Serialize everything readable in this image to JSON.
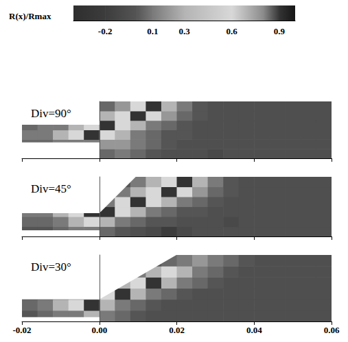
{
  "chart_data": {
    "type": "heatmap",
    "colorbar": {
      "title": "R(x)/Rmax",
      "range": [
        -0.4,
        1.0
      ],
      "ticks": [
        -0.2,
        0.1,
        0.3,
        0.6,
        0.9
      ],
      "stops": [
        [
          -0.4,
          "#2e2e2e"
        ],
        [
          -0.2,
          "#3c3c3c"
        ],
        [
          0.0,
          "#555555"
        ],
        [
          0.1,
          "#7a7a7a"
        ],
        [
          0.3,
          "#b4b4b4"
        ],
        [
          0.6,
          "#d8d8d8"
        ],
        [
          0.8,
          "#8a8a8a"
        ],
        [
          0.9,
          "#333333"
        ],
        [
          1.0,
          "#151515"
        ]
      ]
    },
    "xlim": [
      -0.02,
      0.06
    ],
    "xticks": [
      -0.02,
      {
        "value": 0,
        "label": "0.00"
      },
      0.02,
      0.04,
      0.06
    ],
    "x_edges": [
      -0.02,
      -0.016,
      -0.012,
      -0.008,
      -0.004,
      0,
      0.004,
      0.008,
      0.012,
      0.016,
      0.02,
      0.024,
      0.028,
      0.032,
      0.036,
      0.04,
      0.044,
      0.048,
      0.052,
      0.056,
      0.06
    ],
    "panels": [
      {
        "label": "Div=90°",
        "div_angle": 90,
        "inlet": [
          0.0041,
          0.0087
        ],
        "ylim": [
          0,
          0.0147
        ],
        "tick_labels": false,
        "y_edges": [
          0,
          0.00245,
          0.0049,
          0.00735,
          0.0098,
          0.01225,
          0.0147
        ],
        "cells": [
          [
            0,
            0,
            0,
            0,
            0,
            0.05,
            0.1,
            0.05,
            0,
            -0.05,
            -0.05,
            -0.05,
            -0.1,
            -0.05,
            -0.05,
            -0.05,
            -0.05,
            -0.05,
            -0.05,
            -0.05
          ],
          [
            0.05,
            0.05,
            0.1,
            0.1,
            0.1,
            0.2,
            0.2,
            0.1,
            0.05,
            0,
            -0.05,
            -0.05,
            -0.05,
            -0.05,
            -0.05,
            -0.05,
            -0.05,
            -0.05,
            -0.05,
            -0.05
          ],
          [
            0.1,
            0.1,
            0.3,
            0.6,
            0.9,
            0.6,
            0.3,
            0.1,
            0.05,
            0,
            0,
            -0.05,
            -0.05,
            -0.05,
            -0.05,
            -0.05,
            -0.05,
            -0.05,
            -0.05,
            -0.05
          ],
          [
            0.05,
            0.1,
            0.1,
            0.3,
            0.6,
            0.9,
            0.6,
            0.3,
            0.1,
            0.05,
            0,
            -0.05,
            -0.05,
            -0.05,
            -0.05,
            -0.05,
            -0.05,
            -0.05,
            -0.05,
            -0.05
          ],
          [
            0,
            0,
            0,
            0,
            0,
            0.3,
            0.6,
            0.9,
            0.6,
            0.2,
            0.05,
            0,
            -0.05,
            -0.05,
            -0.05,
            -0.05,
            -0.05,
            -0.05,
            -0.05,
            -0.05
          ],
          [
            0,
            0,
            0,
            0,
            0,
            0.05,
            0.2,
            0.6,
            0.9,
            0.3,
            0.1,
            0,
            -0.05,
            -0.05,
            -0.05,
            -0.05,
            -0.05,
            -0.05,
            -0.05,
            -0.05
          ]
        ]
      },
      {
        "label": "Div=45°",
        "div_angle": 45,
        "inlet": [
          0.0016,
          0.006
        ],
        "ylim": [
          0,
          0.0154
        ],
        "tick_labels": false,
        "y_edges": [
          0,
          0.00257,
          0.00513,
          0.0077,
          0.01027,
          0.01283,
          0.0154
        ],
        "cells": [
          [
            0,
            0,
            0.05,
            0.1,
            0.1,
            0.05,
            0,
            -0.05,
            -0.1,
            -0.2,
            -0.1,
            -0.05,
            -0.05,
            -0.05,
            -0.05,
            -0.05,
            -0.05,
            -0.05,
            -0.05,
            -0.05
          ],
          [
            0.05,
            0.05,
            0.1,
            0.3,
            0.6,
            0.3,
            0.1,
            0.05,
            0,
            0,
            -0.05,
            -0.05,
            -0.05,
            -0.1,
            -0.05,
            -0.05,
            -0.05,
            -0.05,
            -0.05,
            -0.05
          ],
          [
            0.1,
            0.1,
            0.3,
            0.6,
            0.9,
            0.9,
            0.6,
            0.3,
            0.1,
            0.05,
            0,
            0,
            -0.05,
            -0.05,
            -0.05,
            -0.05,
            -0.05,
            -0.05,
            -0.05,
            -0.05
          ],
          [
            0,
            0,
            0,
            0,
            0,
            0.1,
            0.6,
            0.9,
            0.6,
            0.3,
            0.1,
            0.05,
            0,
            -0.05,
            -0.05,
            -0.05,
            -0.05,
            -0.05,
            -0.05,
            -0.05
          ],
          [
            0,
            0,
            0,
            0,
            0,
            0,
            0.1,
            0.3,
            0.6,
            0.9,
            0.6,
            0.2,
            0.05,
            0,
            -0.05,
            -0.05,
            -0.05,
            -0.05,
            -0.05,
            -0.05
          ],
          [
            0,
            0,
            0,
            0,
            0,
            0,
            0,
            0.1,
            0.3,
            0.6,
            0.9,
            0.3,
            0.1,
            0,
            -0.05,
            -0.05,
            -0.05,
            -0.05,
            -0.05,
            -0.05
          ]
        ]
      },
      {
        "label": "Div=30°",
        "div_angle": 30,
        "inlet": [
          0.0011,
          0.0057
        ],
        "ylim": [
          0,
          0.0172
        ],
        "tick_labels": "x",
        "y_edges": [
          0,
          0.00287,
          0.00573,
          0.0086,
          0.01147,
          0.01433,
          0.0172
        ],
        "cells": [
          [
            0,
            0.05,
            0.1,
            0.1,
            0.3,
            0.1,
            0.05,
            0,
            -0.05,
            -0.05,
            -0.05,
            -0.05,
            -0.05,
            -0.05,
            -0.05,
            -0.05,
            -0.05,
            -0.05,
            -0.05,
            -0.05
          ],
          [
            0.05,
            0.1,
            0.3,
            0.6,
            0.9,
            0.3,
            0.1,
            0.05,
            0,
            -0.05,
            -0.05,
            -0.05,
            -0.05,
            -0.05,
            -0.05,
            -0.05,
            -0.05,
            -0.05,
            -0.05,
            -0.05
          ],
          [
            0,
            0,
            0.05,
            0.1,
            0.3,
            0.6,
            0.9,
            0.3,
            0.1,
            0.05,
            0,
            -0.05,
            -0.05,
            -0.05,
            -0.05,
            -0.05,
            -0.05,
            -0.05,
            -0.05,
            -0.05
          ],
          [
            0,
            0,
            0,
            0,
            0,
            0.05,
            0.3,
            0.6,
            0.9,
            0.3,
            0.1,
            0.05,
            0,
            -0.05,
            -0.05,
            -0.05,
            -0.05,
            -0.05,
            -0.05,
            -0.05
          ],
          [
            0,
            0,
            0,
            0,
            0,
            0,
            0,
            0.1,
            0.3,
            0.6,
            0.3,
            0.1,
            0.05,
            0,
            -0.05,
            -0.05,
            -0.05,
            -0.05,
            -0.05,
            -0.05
          ],
          [
            0,
            0,
            0,
            0,
            0,
            0,
            0,
            0,
            0,
            0.05,
            0.1,
            0.2,
            0.1,
            0.05,
            0,
            -0.05,
            -0.05,
            -0.05,
            -0.05,
            -0.05
          ]
        ]
      }
    ]
  }
}
